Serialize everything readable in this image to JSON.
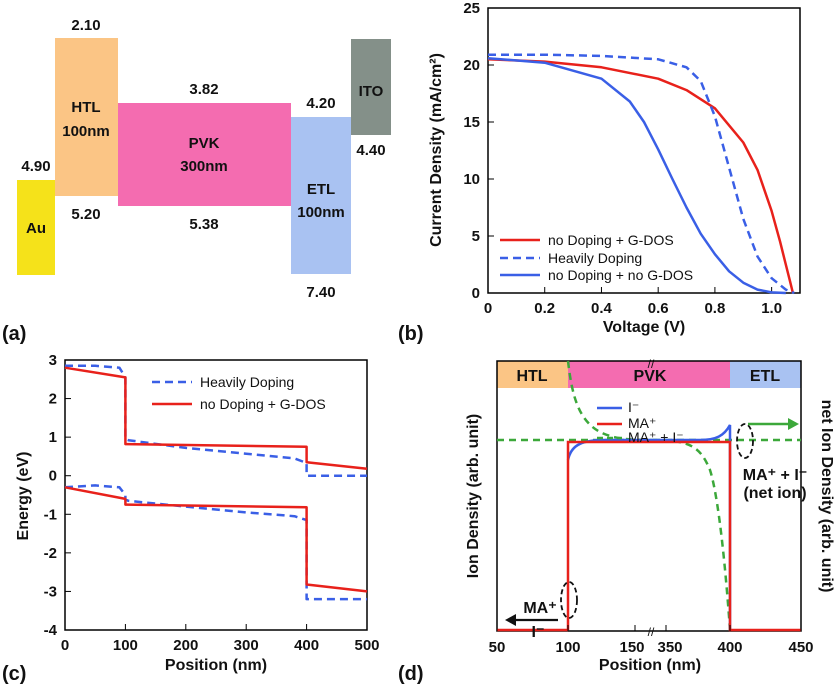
{
  "panel_labels": {
    "a": "(a)",
    "b": "(b)",
    "c": "(c)",
    "d": "(d)"
  },
  "panel_a": {
    "layers": [
      {
        "key": "au",
        "name": "Au",
        "top": "4.90",
        "bottom": "",
        "color": "#f5e21a"
      },
      {
        "key": "htl",
        "name": "HTL",
        "thick": "100nm",
        "top": "2.10",
        "bottom": "5.20",
        "color": "#fbc585"
      },
      {
        "key": "pvk",
        "name": "PVK",
        "thick": "300nm",
        "top": "3.82",
        "bottom": "5.38",
        "color": "#f46cb0"
      },
      {
        "key": "etl",
        "name": "ETL",
        "thick": "100nm",
        "top": "4.20",
        "bottom": "7.40",
        "color": "#a9c2f2"
      },
      {
        "key": "ito",
        "name": "ITO",
        "top": "",
        "bottom": "4.40",
        "color": "#849089"
      }
    ]
  },
  "chart_data": [
    {
      "id": "b",
      "type": "line",
      "xlabel": "Voltage (V)",
      "ylabel": "Current Density (mA/cm²)",
      "xlim": [
        0,
        1.1
      ],
      "ylim": [
        0,
        25
      ],
      "xticks": [
        "0",
        "0.2",
        "0.4",
        "0.6",
        "0.8",
        "1.0"
      ],
      "yticks": [
        "0",
        "5",
        "10",
        "15",
        "20",
        "25"
      ],
      "series": [
        {
          "name": "no Doping + G-DOS",
          "color": "#e8211b",
          "style": "solid",
          "x": [
            0,
            0.2,
            0.4,
            0.6,
            0.7,
            0.8,
            0.9,
            0.95,
            1.0,
            1.03,
            1.05,
            1.065,
            1.075
          ],
          "y": [
            20.5,
            20.3,
            19.8,
            18.8,
            17.8,
            16.2,
            13.2,
            10.8,
            7.2,
            4.5,
            2.5,
            1.0,
            0
          ]
        },
        {
          "name": "Heavily Doping",
          "color": "#3a5fe6",
          "style": "dashed",
          "x": [
            0,
            0.2,
            0.4,
            0.6,
            0.7,
            0.75,
            0.8,
            0.85,
            0.9,
            0.95,
            1.0,
            1.05,
            1.08
          ],
          "y": [
            20.9,
            20.9,
            20.8,
            20.5,
            19.8,
            18.6,
            15.5,
            11.0,
            6.5,
            3.2,
            1.3,
            0.3,
            0
          ]
        },
        {
          "name": "no Doping + no G-DOS",
          "color": "#3a5fe6",
          "style": "solid",
          "x": [
            0,
            0.2,
            0.4,
            0.5,
            0.55,
            0.6,
            0.65,
            0.7,
            0.75,
            0.8,
            0.85,
            0.9,
            0.95,
            1.0,
            1.05
          ],
          "y": [
            20.6,
            20.2,
            18.8,
            16.8,
            15.0,
            12.6,
            10.0,
            7.5,
            5.2,
            3.4,
            1.9,
            0.9,
            0.3,
            0.05,
            0
          ]
        }
      ]
    },
    {
      "id": "c",
      "type": "line",
      "xlabel": "Position (nm)",
      "ylabel": "Energy (eV)",
      "xlim": [
        0,
        500
      ],
      "ylim": [
        -4,
        3
      ],
      "xticks": [
        "0",
        "100",
        "200",
        "300",
        "400",
        "500"
      ],
      "yticks": [
        "-4",
        "-3",
        "-2",
        "-1",
        "0",
        "1",
        "2",
        "3"
      ],
      "series": [
        {
          "name": "Heavily Doping",
          "color": "#3a5fe6",
          "style": "dashed",
          "x": [
            0,
            50,
            90,
            100,
            100,
            105,
            200,
            300,
            380,
            400,
            400,
            410,
            500
          ],
          "y": [
            2.85,
            2.85,
            2.8,
            2.55,
            0.95,
            0.92,
            0.72,
            0.57,
            0.45,
            0.33,
            0.0,
            0.0,
            0.0
          ]
        },
        {
          "name": "",
          "color": "#3a5fe6",
          "style": "dashed",
          "x": [
            0,
            50,
            90,
            100,
            100,
            105,
            200,
            300,
            380,
            400,
            400,
            410,
            500
          ],
          "y": [
            -0.3,
            -0.25,
            -0.3,
            -0.5,
            -0.62,
            -0.65,
            -0.8,
            -0.95,
            -1.05,
            -1.15,
            -3.2,
            -3.2,
            -3.2
          ]
        },
        {
          "name": "no Doping + G-DOS",
          "color": "#e8211b",
          "style": "solid",
          "x": [
            0,
            100,
            100,
            400,
            400,
            500
          ],
          "y": [
            2.8,
            2.55,
            0.82,
            0.75,
            0.35,
            0.18
          ]
        },
        {
          "name": "",
          "color": "#e8211b",
          "style": "solid",
          "x": [
            0,
            100,
            100,
            400,
            400,
            500
          ],
          "y": [
            -0.3,
            -0.6,
            -0.75,
            -0.82,
            -2.82,
            -3.0
          ]
        }
      ]
    },
    {
      "id": "d",
      "type": "line",
      "xlabel": "Position (nm)",
      "ylabel": "Ion Density (arb. unit)",
      "ylabel_right": "net Ion Density (arb. unit)",
      "xticks": [
        "50",
        "100",
        "150",
        "350",
        "400",
        "450"
      ],
      "regions": [
        "HTL",
        "PVK",
        "ETL"
      ],
      "break_mark": "//",
      "series": [
        {
          "name": "I⁻",
          "color": "#3a5fe6",
          "style": "solid"
        },
        {
          "name": "MA⁺",
          "color": "#e8211b",
          "style": "solid"
        },
        {
          "name": "MA⁺ + I⁻",
          "color": "#3ca83a",
          "style": "dashed"
        }
      ],
      "annotations": {
        "left_top": "MA⁺",
        "left_bottom": "I⁻",
        "right_top": "MA⁺ + I⁻",
        "right_bottom": "(net ion)"
      }
    }
  ]
}
